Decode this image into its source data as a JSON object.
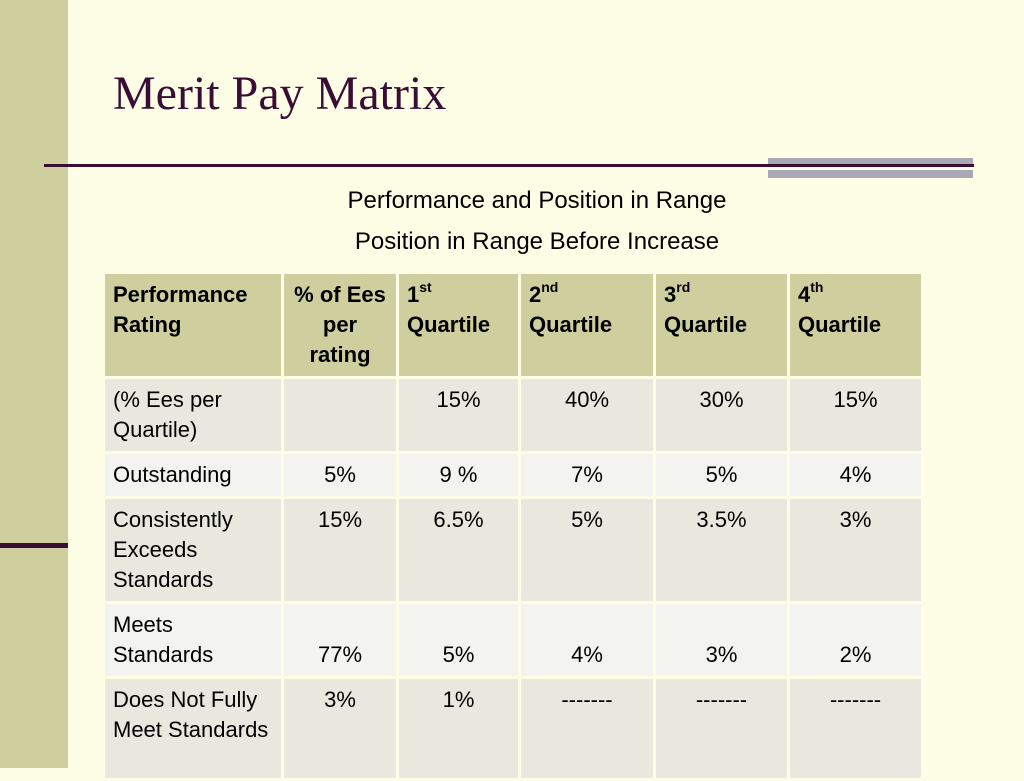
{
  "slide": {
    "title": "Merit Pay Matrix",
    "subtitle_line1": "Performance and Position in Range",
    "subtitle_line2": "Position in Range Before Increase"
  },
  "table": {
    "headers": [
      {
        "text": "Performance Rating"
      },
      {
        "text": "% of Ees per rating"
      },
      {
        "num": "1",
        "sup": "st",
        "word": "Quartile"
      },
      {
        "num": "2",
        "sup": "nd",
        "word": "Quartile"
      },
      {
        "num": "3",
        "sup": "rd",
        "word": "Quartile"
      },
      {
        "num": "4",
        "sup": "th",
        "word": "Quartile"
      }
    ],
    "rows": [
      [
        "(% Ees per Quartile)",
        "",
        "15%",
        "40%",
        "30%",
        "15%"
      ],
      [
        "Outstanding",
        "5%",
        "9 %",
        "7%",
        "5%",
        "4%"
      ],
      [
        "Consistently Exceeds Standards",
        "15%",
        "6.5%",
        "5%",
        "3.5%",
        "3%"
      ],
      [
        "Meets Standards",
        "77%",
        "5%",
        "4%",
        "3%",
        "2%"
      ],
      [
        "Does Not Fully Meet Standards",
        "3%",
        "1%",
        "-------",
        "-------",
        "-------"
      ]
    ]
  }
}
